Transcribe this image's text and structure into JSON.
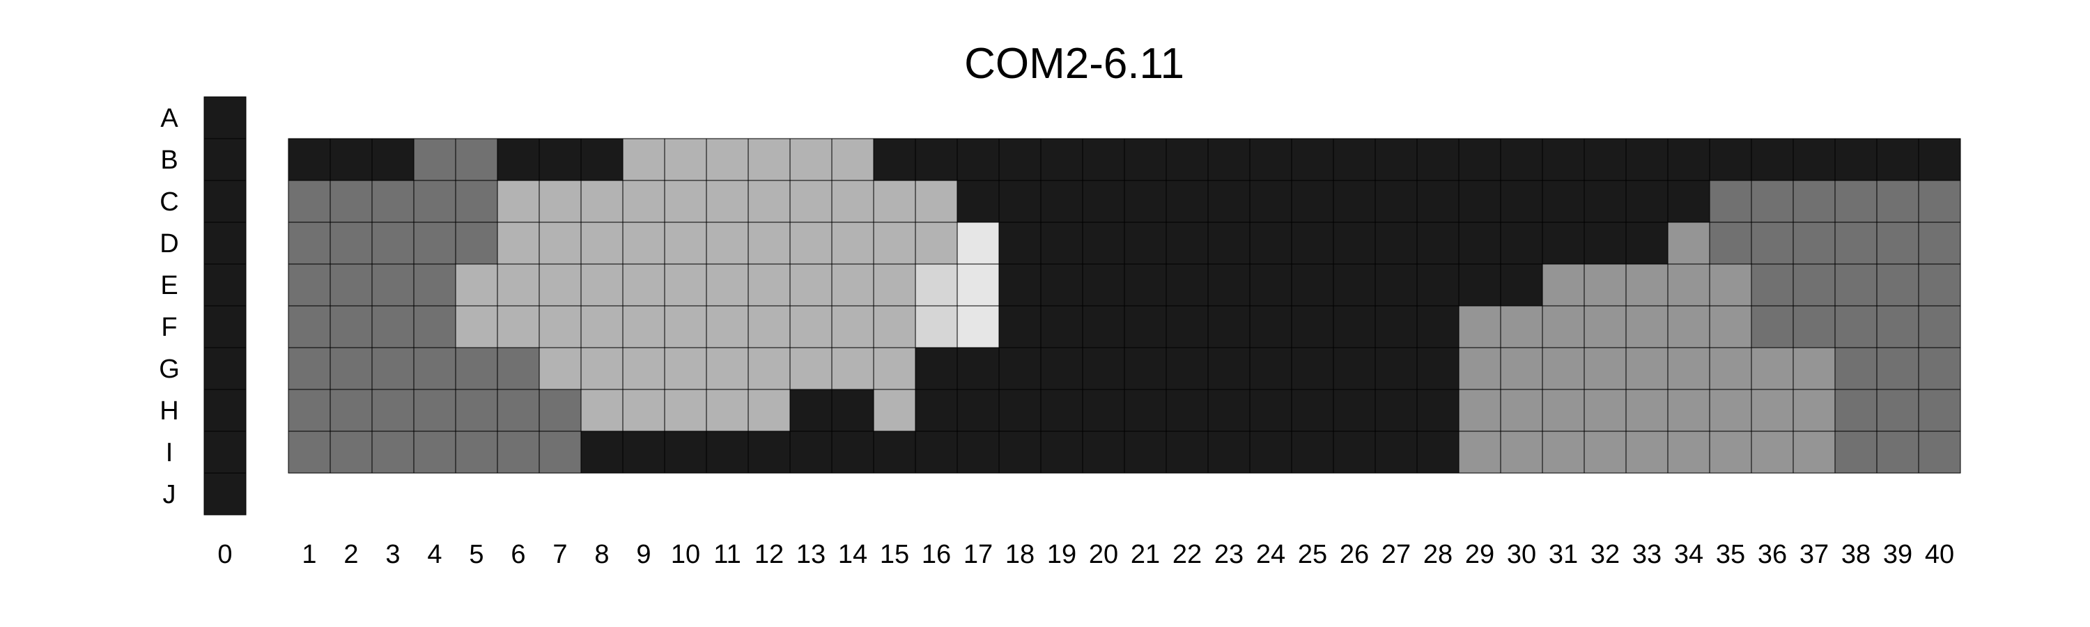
{
  "chart_data": {
    "type": "heatmap",
    "title": "COM2-6.11",
    "xlabel": "",
    "ylabel": "",
    "grid": true,
    "legend": "none",
    "rows": [
      "A",
      "B",
      "C",
      "D",
      "E",
      "F",
      "G",
      "H",
      "I",
      "J"
    ],
    "cols": [
      "0",
      "1",
      "2",
      "3",
      "4",
      "5",
      "6",
      "7",
      "8",
      "9",
      "10",
      "11",
      "12",
      "13",
      "14",
      "15",
      "16",
      "17",
      "18",
      "19",
      "20",
      "21",
      "22",
      "23",
      "24",
      "25",
      "26",
      "27",
      "28",
      "29",
      "30",
      "31",
      "32",
      "33",
      "34",
      "35",
      "36",
      "37",
      "38",
      "39",
      "40"
    ],
    "palette": {
      "0": "#1a1a1a",
      "1": "#717171",
      "2": "#959595",
      "3": "#b3b3b3",
      "4": "#d6d6d6",
      "5": "#e6e6e6"
    },
    "column0_levels": [
      0,
      0,
      0,
      0,
      0,
      0,
      0,
      0,
      0,
      0
    ],
    "grid_levels": {
      "B": [
        0,
        0,
        0,
        1,
        1,
        0,
        0,
        0,
        3,
        3,
        3,
        3,
        3,
        3,
        0,
        0,
        0,
        0,
        0,
        0,
        0,
        0,
        0,
        0,
        0,
        0,
        0,
        0,
        0,
        0,
        0,
        0,
        0,
        0,
        0,
        0,
        0,
        0,
        0,
        0
      ],
      "C": [
        1,
        1,
        1,
        1,
        1,
        3,
        3,
        3,
        3,
        3,
        3,
        3,
        3,
        3,
        3,
        3,
        0,
        0,
        0,
        0,
        0,
        0,
        0,
        0,
        0,
        0,
        0,
        0,
        0,
        0,
        0,
        0,
        0,
        0,
        1,
        1,
        1,
        1,
        1,
        1
      ],
      "D": [
        1,
        1,
        1,
        1,
        1,
        3,
        3,
        3,
        3,
        3,
        3,
        3,
        3,
        3,
        3,
        3,
        5,
        0,
        0,
        0,
        0,
        0,
        0,
        0,
        0,
        0,
        0,
        0,
        0,
        0,
        0,
        0,
        0,
        2,
        1,
        1,
        1,
        1,
        1,
        1
      ],
      "E": [
        1,
        1,
        1,
        1,
        3,
        3,
        3,
        3,
        3,
        3,
        3,
        3,
        3,
        3,
        3,
        4,
        5,
        0,
        0,
        0,
        0,
        0,
        0,
        0,
        0,
        0,
        0,
        0,
        0,
        0,
        2,
        2,
        2,
        2,
        2,
        1,
        1,
        1,
        1,
        1
      ],
      "F": [
        1,
        1,
        1,
        1,
        3,
        3,
        3,
        3,
        3,
        3,
        3,
        3,
        3,
        3,
        3,
        4,
        5,
        0,
        0,
        0,
        0,
        0,
        0,
        0,
        0,
        0,
        0,
        0,
        2,
        2,
        2,
        2,
        2,
        2,
        2,
        1,
        1,
        1,
        1,
        1
      ],
      "G": [
        1,
        1,
        1,
        1,
        1,
        1,
        3,
        3,
        3,
        3,
        3,
        3,
        3,
        3,
        3,
        0,
        0,
        0,
        0,
        0,
        0,
        0,
        0,
        0,
        0,
        0,
        0,
        0,
        2,
        2,
        2,
        2,
        2,
        2,
        2,
        2,
        2,
        1,
        1,
        1
      ],
      "H": [
        1,
        1,
        1,
        1,
        1,
        1,
        1,
        3,
        3,
        3,
        3,
        3,
        0,
        0,
        3,
        0,
        0,
        0,
        0,
        0,
        0,
        0,
        0,
        0,
        0,
        0,
        0,
        0,
        2,
        2,
        2,
        2,
        2,
        2,
        2,
        2,
        2,
        1,
        1,
        1
      ],
      "I": [
        1,
        1,
        1,
        1,
        1,
        1,
        1,
        0,
        0,
        0,
        0,
        0,
        0,
        0,
        0,
        0,
        0,
        0,
        0,
        0,
        0,
        0,
        0,
        0,
        0,
        0,
        0,
        0,
        2,
        2,
        2,
        2,
        2,
        2,
        2,
        2,
        2,
        1,
        1,
        1
      ]
    }
  }
}
